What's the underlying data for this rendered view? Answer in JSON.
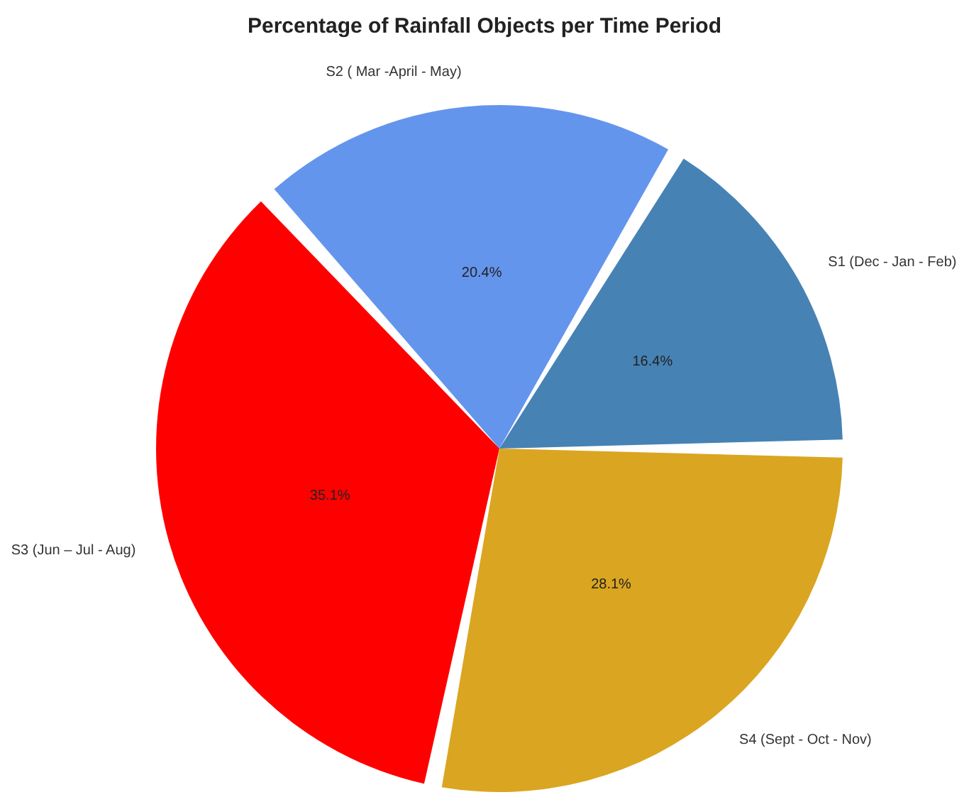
{
  "chart_data": {
    "type": "pie",
    "title": "Percentage of Rainfall Objects per Time Period",
    "categories": [
      "S1 (Dec - Jan - Feb)",
      "S2 ( Mar -April - May)",
      "S3 (Jun – Jul - Aug)",
      "S4 (Sept - Oct - Nov)"
    ],
    "values": [
      16.4,
      20.4,
      35.1,
      28.1
    ],
    "value_labels": [
      "16.4%",
      "20.4%",
      "35.1%",
      "28.1%"
    ],
    "colors": [
      "#4682b4",
      "#6495ed",
      "#ff0000",
      "#daa520"
    ],
    "legend": false
  }
}
